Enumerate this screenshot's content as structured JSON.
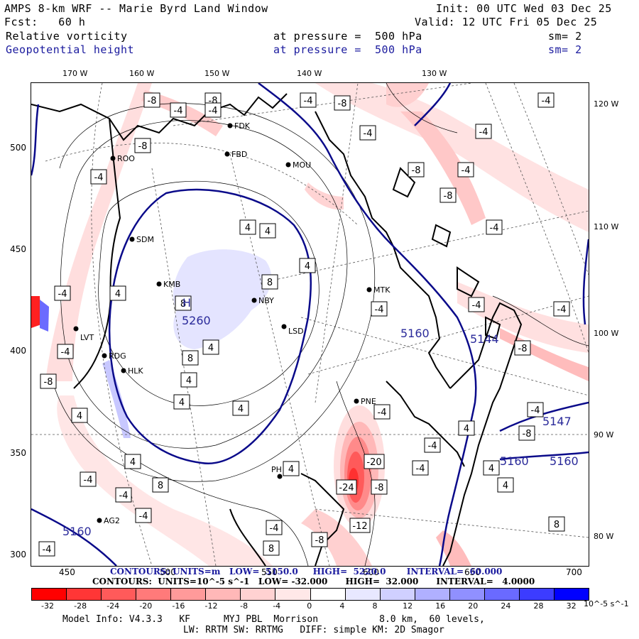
{
  "header": {
    "title": "AMPS 8-km WRF -- Marie Byrd Land Window",
    "forecast": "Fcst:   60 h",
    "init": "Init: 00 UTC Wed 03 Dec 25",
    "valid": "Valid: 12 UTC Fri 05 Dec 25",
    "field1": "Relative vorticity",
    "field1_level": "at pressure =  500 hPa",
    "field1_sm": "sm= 2",
    "field2": "Geopotential height",
    "field2_level": "at pressure =  500 hPa",
    "field2_sm": "sm= 2"
  },
  "map": {
    "lon_top": [
      "170 W",
      "160 W",
      "150 W",
      "140 W",
      "130 W"
    ],
    "lon_right": [
      "120 W",
      "110 W",
      "100 W",
      "90 W",
      "80 W"
    ],
    "y_ticks": [
      "500",
      "450",
      "400",
      "350",
      "300"
    ],
    "x_ticks": [
      "450",
      "500",
      "550",
      "600",
      "650",
      "700"
    ],
    "stations": [
      {
        "id": "FDK"
      },
      {
        "id": "FBD"
      },
      {
        "id": "MOU"
      },
      {
        "id": "ROO"
      },
      {
        "id": "SDM"
      },
      {
        "id": "KMB"
      },
      {
        "id": "NBY"
      },
      {
        "id": "MTK"
      },
      {
        "id": "LVT"
      },
      {
        "id": "RDG"
      },
      {
        "id": "HLK"
      },
      {
        "id": "PNE"
      },
      {
        "id": "PH"
      },
      {
        "id": "AG2"
      },
      {
        "id": "LSD"
      }
    ],
    "high_label": "H",
    "high_value": "5260",
    "height_labels": [
      "5160",
      "5147",
      "5160",
      "5160",
      "5144",
      "5160"
    ],
    "vort_labels": [
      "-8",
      "-4",
      "-8",
      "-4",
      "-8",
      "-4",
      "-4",
      "-8",
      "-4",
      "-8",
      "-8",
      "-4",
      "-4",
      "-4",
      "-4",
      "4",
      "4",
      "4",
      "8",
      "8",
      "4",
      "8",
      "4",
      "4",
      "4",
      "8",
      "4",
      "4",
      "4",
      "-4",
      "-4",
      "-4",
      "-4",
      "-8",
      "-4",
      "-4",
      "-20",
      "-8",
      "-12",
      "-24",
      "-4",
      "-4",
      "-4",
      "4",
      "4",
      "4",
      "8",
      "-4",
      "-8",
      "-4",
      "-4",
      "-4",
      "4",
      "8",
      "-4",
      "-8",
      "-8"
    ]
  },
  "contour_lines": {
    "line1": "CONTOURS: UNITS=m   LOW=  5150.0     HIGH=  5220.0       INTERVAL=  60.000",
    "line2": "CONTOURS:  UNITS=10^-5 s^-1   LOW= -32.000      HIGH=  32.000      INTERVAL=   4.0000"
  },
  "colorbar": {
    "labels": [
      "-32",
      "-28",
      "-24",
      "-20",
      "-16",
      "-12",
      "-8",
      "-4",
      "0",
      "4",
      "8",
      "12",
      "16",
      "20",
      "24",
      "28",
      "32"
    ],
    "units": "10^-5 s^-1",
    "colors": [
      "#ff0000",
      "#ff3636",
      "#ff5a5a",
      "#ff7a7a",
      "#ff9a9a",
      "#ffb8b8",
      "#ffd2d2",
      "#ffe8e8",
      "#ffffff",
      "#ffffff",
      "#e8e8ff",
      "#d0d0ff",
      "#b0b0ff",
      "#9090ff",
      "#6a6aff",
      "#3c3cff",
      "#0000ff"
    ]
  },
  "footer": {
    "line1": "Model Info: V4.3.3   KF      MYJ PBL  Morrison           8.0 km,  60 levels,",
    "line2": "LW: RRTM SW: RRTMG   DIFF: simple KM: 2D Smagor"
  }
}
